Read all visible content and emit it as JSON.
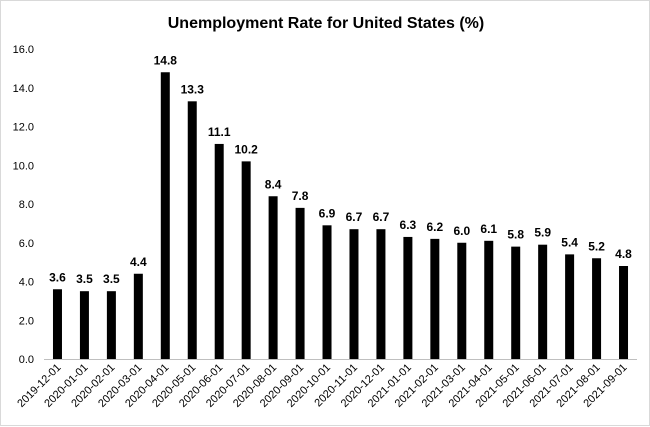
{
  "chart_data": {
    "type": "bar",
    "title": "Unemployment Rate for United States (%)",
    "xlabel": "",
    "ylabel": "",
    "ylim": [
      0,
      16
    ],
    "yticks": [
      "0.0",
      "2.0",
      "4.0",
      "6.0",
      "8.0",
      "10.0",
      "12.0",
      "14.0",
      "16.0"
    ],
    "grid": false,
    "legend": "none",
    "categories": [
      "2019-12-01",
      "2020-01-01",
      "2020-02-01",
      "2020-03-01",
      "2020-04-01",
      "2020-05-01",
      "2020-06-01",
      "2020-07-01",
      "2020-08-01",
      "2020-09-01",
      "2020-10-01",
      "2020-11-01",
      "2020-12-01",
      "2021-01-01",
      "2021-02-01",
      "2021-03-01",
      "2021-04-01",
      "2021-05-01",
      "2021-06-01",
      "2021-07-01",
      "2021-08-01",
      "2021-09-01"
    ],
    "values": [
      3.6,
      3.5,
      3.5,
      4.4,
      14.8,
      13.3,
      11.1,
      10.2,
      8.4,
      7.8,
      6.9,
      6.7,
      6.7,
      6.3,
      6.2,
      6.0,
      6.1,
      5.8,
      5.9,
      5.4,
      5.2,
      4.8
    ],
    "value_labels": [
      "3.6",
      "3.5",
      "3.5",
      "4.4",
      "14.8",
      "13.3",
      "11.1",
      "10.2",
      "8.4",
      "7.8",
      "6.9",
      "6.7",
      "6.7",
      "6.3",
      "6.2",
      "6.0",
      "6.1",
      "5.8",
      "5.9",
      "5.4",
      "5.2",
      "4.8"
    ],
    "bar_color": "#000000"
  }
}
